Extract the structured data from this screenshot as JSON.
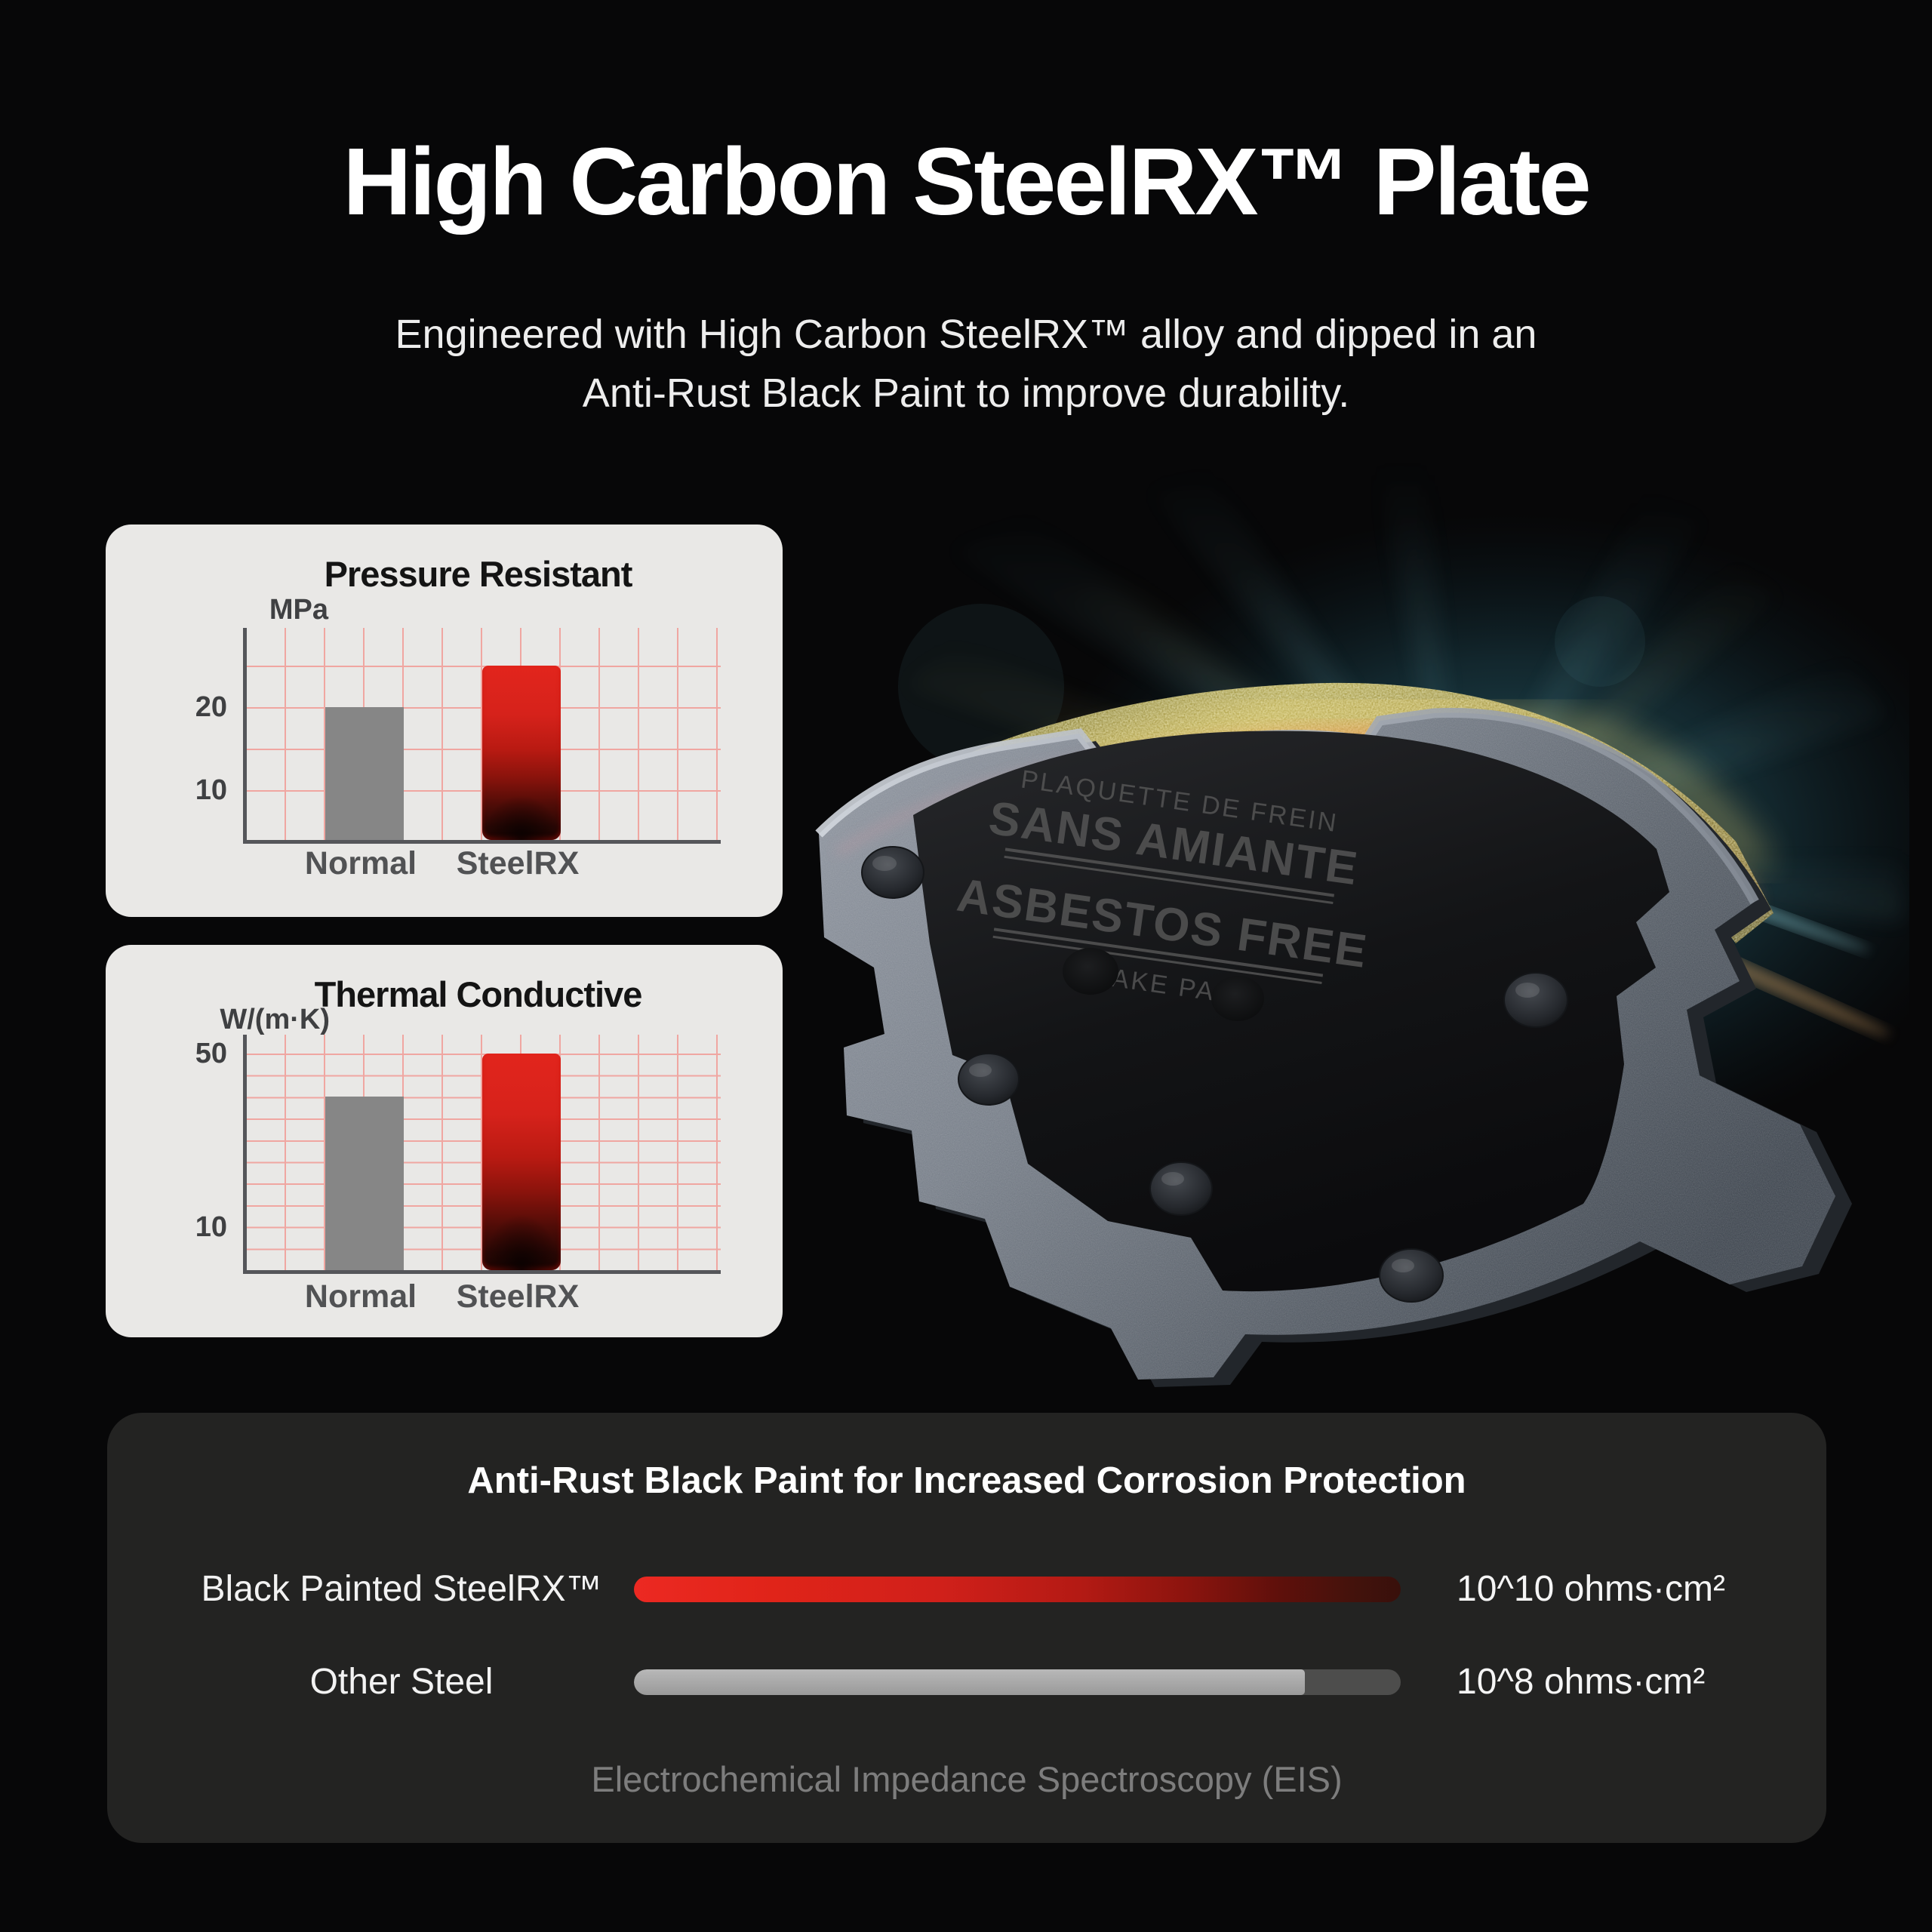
{
  "header": {
    "title": "High Carbon SteelRX™ Plate",
    "subtitle_lines": [
      "Engineered with High Carbon SteelRX™ alloy and dipped in an",
      "Anti-Rust Black Paint to improve durability."
    ]
  },
  "chart_data": [
    {
      "type": "bar",
      "title": "Pressure Resistant",
      "ylabel": "MPa",
      "categories": [
        "Normal",
        "SteelRX"
      ],
      "values": [
        20,
        25
      ],
      "yticks": [
        10,
        20
      ],
      "ylim": [
        4,
        30
      ],
      "grid": true,
      "legend_position": "none",
      "bar_colors": [
        "#868686",
        "red gradient #e2251c to #200502"
      ]
    },
    {
      "type": "bar",
      "title": "Thermal Conductive",
      "ylabel": "W/(m·K)",
      "categories": [
        "Normal",
        "SteelRX"
      ],
      "values": [
        40,
        50
      ],
      "yticks": [
        10,
        50
      ],
      "ylim": [
        0,
        55
      ],
      "grid": true,
      "legend_position": "none",
      "bar_colors": [
        "#868686",
        "red gradient #e2251c to #200502"
      ]
    }
  ],
  "brake_pad": {
    "engraving_lines": [
      "PLAQUETTE DE FREIN",
      "SANS AMIANTE",
      "ASBESTOS FREE",
      "BRAKE PAD"
    ]
  },
  "corrosion_panel": {
    "title": "Anti-Rust Black Paint for Increased Corrosion Protection",
    "rows": [
      {
        "label": "Black Painted SteelRX™",
        "value": "10^10 ohms·cm²",
        "bar_color": "red",
        "fill_ratio": 1
      },
      {
        "label": "Other Steel",
        "value": "10^8 ohms·cm²",
        "bar_color": "gray",
        "fill_ratio": 0.875
      }
    ],
    "caption": "Electrochemical Impedance Spectroscopy (EIS)"
  },
  "colors": {
    "background": "#070708",
    "card_bg": "#e9e8e6",
    "panel_bg": "#232322",
    "accent_red": "#da251d",
    "bar_gray": "#868686",
    "grid_pink": "#f0a6a1",
    "axis_gray": "#55565a",
    "caption_gray": "#7d7d7d"
  }
}
